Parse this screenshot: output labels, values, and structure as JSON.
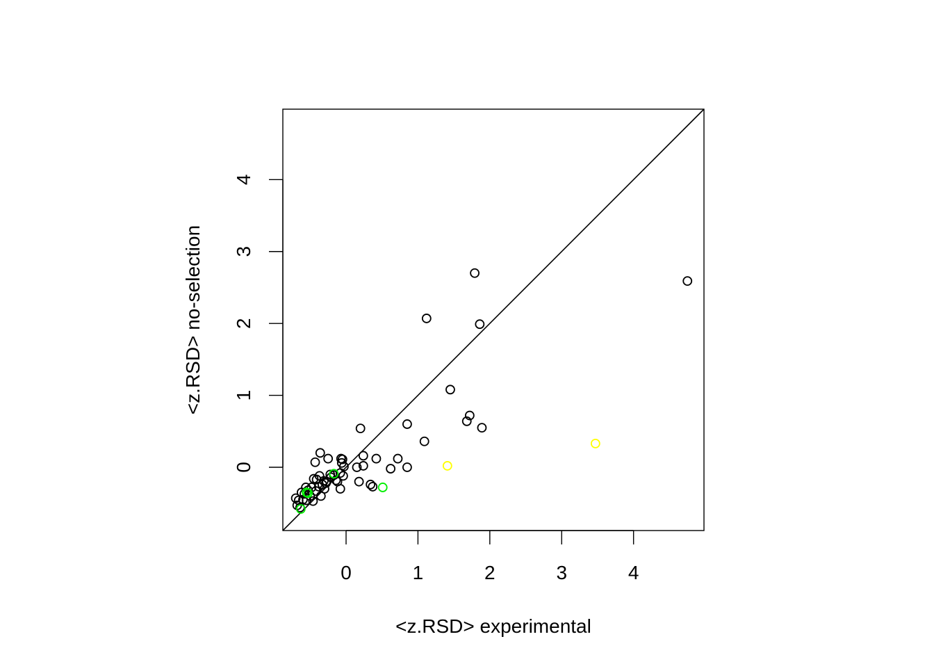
{
  "chart_data": {
    "type": "scatter",
    "title": "",
    "xlabel": "<z.RSD> experimental",
    "ylabel": "<z.RSD> no-selection",
    "xlim": [
      -0.88,
      4.98
    ],
    "ylim": [
      -0.88,
      4.98
    ],
    "xticks": [
      0,
      1,
      2,
      3,
      4
    ],
    "yticks": [
      0,
      1,
      2,
      3,
      4
    ],
    "xtick_labels": [
      "0",
      "1",
      "2",
      "3",
      "4"
    ],
    "ytick_labels": [
      "0",
      "1",
      "2",
      "3",
      "4"
    ],
    "grid": false,
    "legend": "none",
    "reference_line": {
      "slope": 1,
      "intercept": 0,
      "color": "#000000"
    },
    "series": [
      {
        "color": "#000000",
        "points": [
          [
            4.75,
            2.59
          ],
          [
            1.79,
            2.7
          ],
          [
            1.12,
            2.07
          ],
          [
            1.86,
            1.99
          ],
          [
            1.45,
            1.08
          ],
          [
            1.72,
            0.72
          ],
          [
            1.68,
            0.64
          ],
          [
            1.89,
            0.55
          ],
          [
            0.85,
            0.6
          ],
          [
            1.09,
            0.36
          ],
          [
            0.2,
            0.54
          ],
          [
            0.72,
            0.12
          ],
          [
            0.85,
            0.0
          ],
          [
            0.62,
            -0.02
          ],
          [
            0.42,
            0.12
          ],
          [
            0.24,
            0.16
          ],
          [
            0.24,
            0.02
          ],
          [
            0.15,
            0.0
          ],
          [
            0.34,
            -0.24
          ],
          [
            0.37,
            -0.27
          ],
          [
            0.18,
            -0.2
          ],
          [
            -0.04,
            -0.12
          ],
          [
            -0.05,
            0.11
          ],
          [
            -0.06,
            0.06
          ],
          [
            -0.08,
            -0.08
          ],
          [
            -0.08,
            -0.3
          ],
          [
            -0.12,
            -0.2
          ],
          [
            -0.14,
            -0.18
          ],
          [
            -0.17,
            -0.11
          ],
          [
            -0.21,
            -0.14
          ],
          [
            -0.25,
            0.12
          ],
          [
            -0.28,
            -0.22
          ],
          [
            -0.3,
            -0.3
          ],
          [
            -0.33,
            -0.24
          ],
          [
            -0.35,
            -0.4
          ],
          [
            -0.36,
            0.2
          ],
          [
            -0.37,
            -0.12
          ],
          [
            -0.38,
            -0.27
          ],
          [
            -0.41,
            -0.17
          ],
          [
            -0.42,
            -0.33
          ],
          [
            -0.43,
            0.07
          ],
          [
            -0.45,
            -0.16
          ],
          [
            -0.46,
            -0.47
          ],
          [
            -0.48,
            -0.28
          ],
          [
            -0.5,
            -0.4
          ],
          [
            -0.53,
            -0.32
          ],
          [
            -0.55,
            -0.46
          ],
          [
            -0.56,
            -0.28
          ],
          [
            -0.58,
            -0.37
          ],
          [
            -0.6,
            -0.45
          ],
          [
            -0.62,
            -0.35
          ],
          [
            -0.64,
            -0.56
          ],
          [
            -0.66,
            -0.46
          ],
          [
            -0.68,
            -0.53
          ],
          [
            -0.7,
            -0.43
          ],
          [
            -0.03,
            0.01
          ],
          [
            -0.07,
            0.12
          ],
          [
            -0.27,
            -0.2
          ],
          [
            -0.22,
            -0.1
          ],
          [
            -0.31,
            -0.19
          ]
        ]
      },
      {
        "color": "#00ee00",
        "points": [
          [
            0.51,
            -0.28
          ],
          [
            -0.17,
            -0.09
          ],
          [
            -0.53,
            -0.36
          ],
          [
            -0.55,
            -0.35
          ],
          [
            -0.63,
            -0.58
          ]
        ]
      },
      {
        "color": "#ffff00",
        "points": [
          [
            1.41,
            0.02
          ],
          [
            3.47,
            0.33
          ]
        ]
      }
    ]
  }
}
